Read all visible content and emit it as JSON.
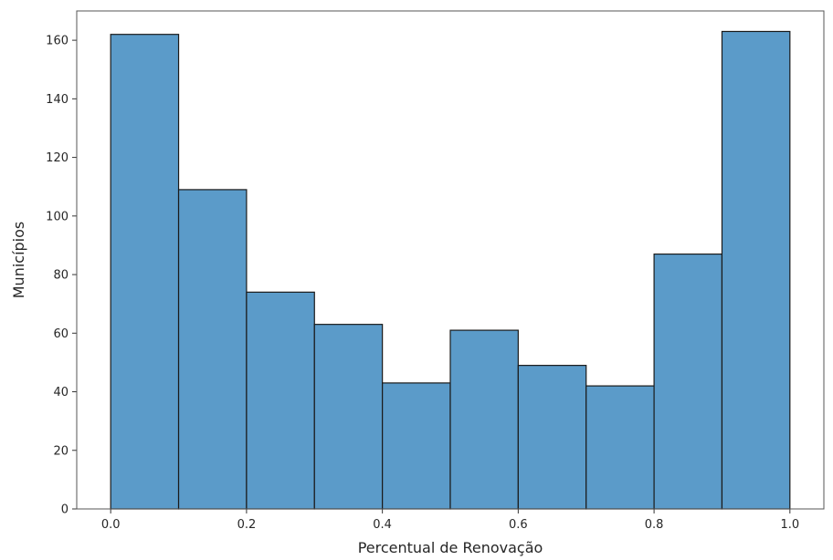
{
  "chart_data": {
    "type": "bar",
    "subtype": "histogram",
    "title": "",
    "xlabel": "Percentual de Renovação",
    "ylabel": "Municípios",
    "bin_edges": [
      0.0,
      0.1,
      0.2,
      0.3,
      0.4,
      0.5,
      0.6,
      0.7,
      0.8,
      0.9,
      1.0
    ],
    "values": [
      162,
      109,
      74,
      63,
      43,
      61,
      49,
      42,
      87,
      163
    ],
    "xlim": [
      -0.05,
      1.05
    ],
    "ylim": [
      0,
      170
    ],
    "xticks": [
      0.0,
      0.2,
      0.4,
      0.6,
      0.8,
      1.0
    ],
    "xtick_labels": [
      "0.0",
      "0.2",
      "0.4",
      "0.6",
      "0.8",
      "1.0"
    ],
    "yticks": [
      0,
      20,
      40,
      60,
      80,
      100,
      120,
      140,
      160
    ],
    "ytick_labels": [
      "0",
      "20",
      "40",
      "60",
      "80",
      "100",
      "120",
      "140",
      "160"
    ],
    "grid": false,
    "bar_color": "#5b9bc9",
    "edge_color": "#1a1a1a"
  }
}
